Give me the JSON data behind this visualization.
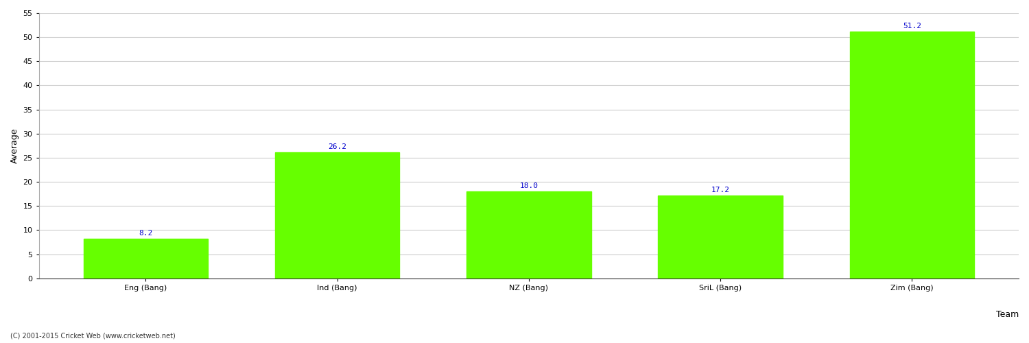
{
  "categories": [
    "Eng (Bang)",
    "Ind (Bang)",
    "NZ (Bang)",
    "SriL (Bang)",
    "Zim (Bang)"
  ],
  "values": [
    8.2,
    26.2,
    18.0,
    17.2,
    51.2
  ],
  "bar_color": "#66ff00",
  "bar_edge_color": "#66ff00",
  "label_color": "#0000cc",
  "xlabel": "Team",
  "ylabel": "Average",
  "ylim": [
    0,
    55
  ],
  "yticks": [
    0,
    5,
    10,
    15,
    20,
    25,
    30,
    35,
    40,
    45,
    50,
    55
  ],
  "background_color": "#ffffff",
  "grid_color": "#cccccc",
  "label_fontsize": 8,
  "axis_label_fontsize": 9,
  "tick_fontsize": 8,
  "bar_width": 0.65,
  "footnote": "(C) 2001-2015 Cricket Web (www.cricketweb.net)"
}
